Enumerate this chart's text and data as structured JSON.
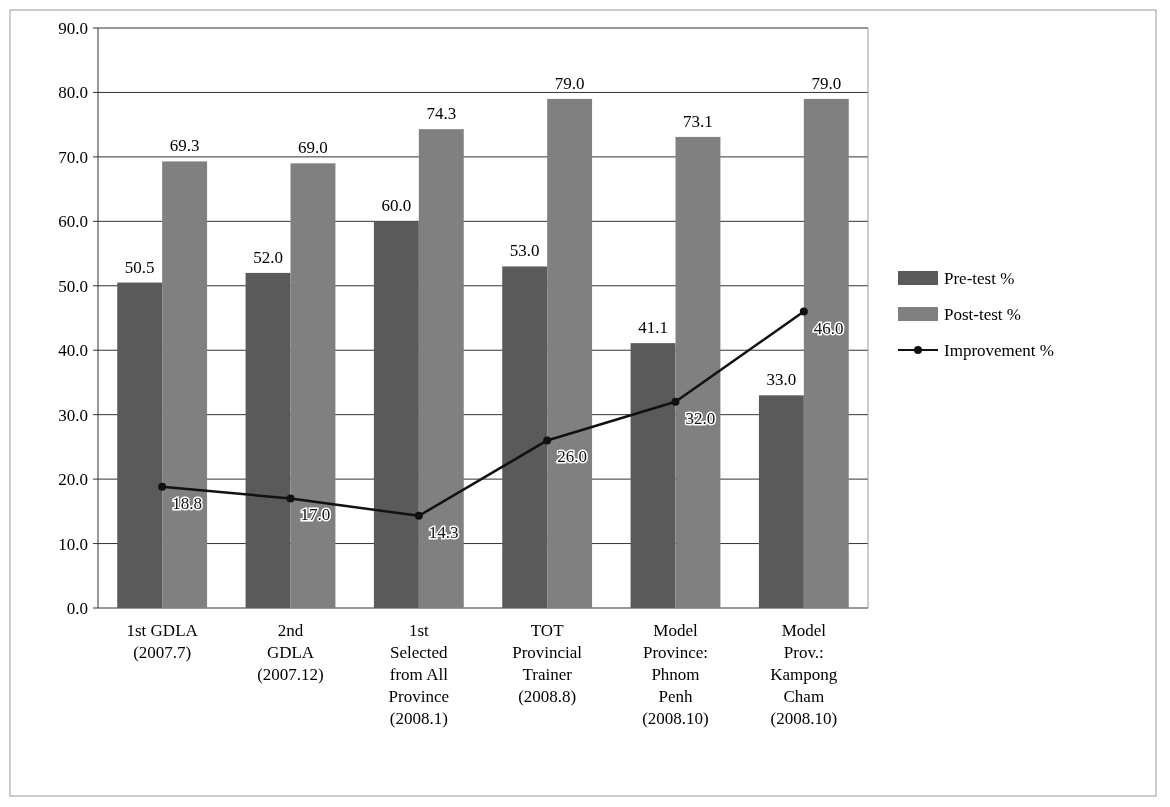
{
  "chart_data": {
    "type": "bar",
    "categories": [
      "1st GDLA\n(2007.7)",
      "2nd\nGDLA\n(2007.12)",
      "1st\nSelected\nfrom All\nProvince\n(2008.1)",
      "TOT\nProvincial\nTrainer\n(2008.8)",
      "Model\nProvince:\nPhnom\nPenh\n(2008.10)",
      "Model\nProv.:\nKampong\nCham\n(2008.10)"
    ],
    "series": [
      {
        "name": "Pre-test %",
        "color": "#5a5a5a",
        "values": [
          50.5,
          52.0,
          60.0,
          53.0,
          41.1,
          33.0
        ],
        "value_labels": [
          "50.5",
          "52.0",
          "60.0",
          "53.0",
          "41.1",
          "33.0"
        ]
      },
      {
        "name": "Post-test %",
        "color": "#808080",
        "values": [
          69.3,
          69.0,
          74.3,
          79.0,
          73.1,
          79.0
        ],
        "value_labels": [
          "69.3",
          "69.0",
          "74.3",
          "79.0",
          "73.1",
          "79.0"
        ]
      },
      {
        "name": "Improvement %",
        "type": "line",
        "color": "#111111",
        "values": [
          18.8,
          17.0,
          14.3,
          26.0,
          32.0,
          46.0
        ],
        "value_labels": [
          "18.8",
          "17.0",
          "14.3",
          "26.0",
          "32.0",
          "46.0"
        ]
      }
    ],
    "ylim": [
      0,
      90
    ],
    "yticks": [
      {
        "value": 0,
        "label": "0.0"
      },
      {
        "value": 10,
        "label": "10.0"
      },
      {
        "value": 20,
        "label": "20.0"
      },
      {
        "value": 30,
        "label": "30.0"
      },
      {
        "value": 40,
        "label": "40.0"
      },
      {
        "value": 50,
        "label": "50.0"
      },
      {
        "value": 60,
        "label": "60.0"
      },
      {
        "value": 70,
        "label": "70.0"
      },
      {
        "value": 80,
        "label": "80.0"
      },
      {
        "value": 90,
        "label": "90.0"
      }
    ],
    "grid": "y",
    "legend": "right",
    "marker": "circle"
  }
}
